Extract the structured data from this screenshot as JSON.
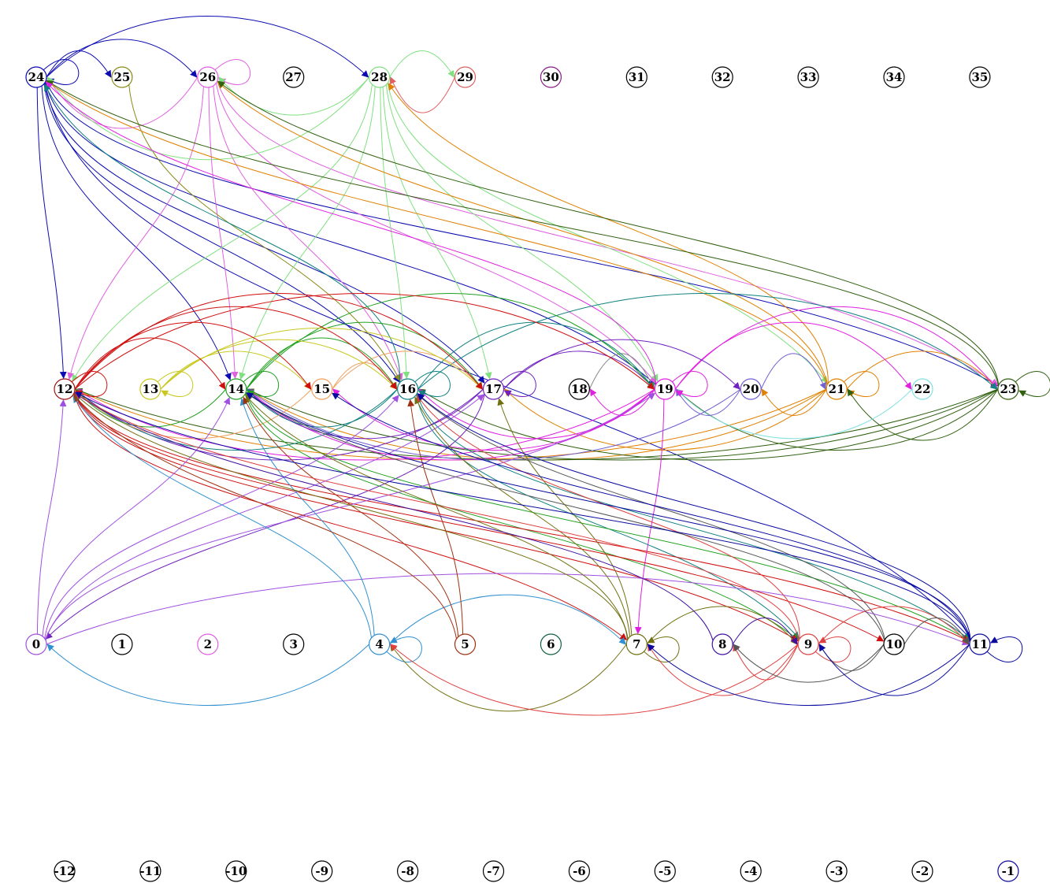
{
  "rows": [
    {
      "row": "top",
      "nodes": [
        {
          "id": "24",
          "color": "#0b0bb0"
        },
        {
          "id": "25",
          "color": "#8a8a1a"
        },
        {
          "id": "26",
          "color": "#e060e0"
        },
        {
          "id": "27",
          "color": "#000000"
        },
        {
          "id": "28",
          "color": "#80e080"
        },
        {
          "id": "29",
          "color": "#e06060"
        },
        {
          "id": "30",
          "color": "#8a1a8a"
        },
        {
          "id": "31",
          "color": "#000000"
        },
        {
          "id": "32",
          "color": "#000000"
        },
        {
          "id": "33",
          "color": "#000000"
        },
        {
          "id": "34",
          "color": "#000000"
        },
        {
          "id": "35",
          "color": "#000000"
        }
      ]
    },
    {
      "row": "middle",
      "nodes": [
        {
          "id": "12",
          "color": "#a01010"
        },
        {
          "id": "13",
          "color": "#c8c820"
        },
        {
          "id": "14",
          "color": "#20a020"
        },
        {
          "id": "15",
          "color": "#f0a060"
        },
        {
          "id": "16",
          "color": "#108080"
        },
        {
          "id": "17",
          "color": "#7020c0"
        },
        {
          "id": "18",
          "color": "#000000"
        },
        {
          "id": "19",
          "color": "#e020e0"
        },
        {
          "id": "20",
          "color": "#7060d0"
        },
        {
          "id": "21",
          "color": "#e08000"
        },
        {
          "id": "22",
          "color": "#80e0e0"
        },
        {
          "id": "23",
          "color": "#306010"
        }
      ]
    },
    {
      "row": "bottom",
      "nodes": [
        {
          "id": "0",
          "color": "#a050e0"
        },
        {
          "id": "1",
          "color": "#000000"
        },
        {
          "id": "2",
          "color": "#e060e0"
        },
        {
          "id": "3",
          "color": "#000000"
        },
        {
          "id": "4",
          "color": "#3090d0"
        },
        {
          "id": "5",
          "color": "#a03010"
        },
        {
          "id": "6",
          "color": "#106040"
        },
        {
          "id": "7",
          "color": "#707010"
        },
        {
          "id": "8",
          "color": "#4010a0"
        },
        {
          "id": "9",
          "color": "#e04040"
        },
        {
          "id": "10",
          "color": "#000000"
        },
        {
          "id": "11",
          "color": "#0a0aa0"
        }
      ]
    },
    {
      "row": "negative",
      "nodes": [
        {
          "id": "-12",
          "color": "#000000"
        },
        {
          "id": "-11",
          "color": "#000000"
        },
        {
          "id": "-10",
          "color": "#000000"
        },
        {
          "id": "-9",
          "color": "#000000"
        },
        {
          "id": "-8",
          "color": "#000000"
        },
        {
          "id": "-7",
          "color": "#000000"
        },
        {
          "id": "-6",
          "color": "#000000"
        },
        {
          "id": "-5",
          "color": "#000000"
        },
        {
          "id": "-4",
          "color": "#000000"
        },
        {
          "id": "-3",
          "color": "#000000"
        },
        {
          "id": "-2",
          "color": "#000000"
        },
        {
          "id": "-1",
          "color": "#0a0aa0"
        }
      ]
    }
  ],
  "edges": [
    {
      "from": "24",
      "to": "25",
      "color": "#0b0bb0"
    },
    {
      "from": "24",
      "to": "26",
      "color": "#0b0bb0"
    },
    {
      "from": "24",
      "to": "28",
      "color": "#0b0bb0"
    },
    {
      "from": "24",
      "to": "24",
      "color": "#0b0bb0"
    },
    {
      "from": "24",
      "to": "12",
      "color": "#0b0bb0"
    },
    {
      "from": "24",
      "to": "14",
      "color": "#0b0bb0"
    },
    {
      "from": "24",
      "to": "16",
      "color": "#0b0bb0"
    },
    {
      "from": "24",
      "to": "17",
      "color": "#0b0bb0"
    },
    {
      "from": "24",
      "to": "19",
      "color": "#0b0bb0"
    },
    {
      "from": "24",
      "to": "23",
      "color": "#0b0bb0"
    },
    {
      "from": "24",
      "to": "11",
      "color": "#0b0bb0"
    },
    {
      "from": "26",
      "to": "26",
      "color": "#e060e0"
    },
    {
      "from": "26",
      "to": "24",
      "color": "#e060e0"
    },
    {
      "from": "26",
      "to": "12",
      "color": "#e060e0"
    },
    {
      "from": "26",
      "to": "14",
      "color": "#e060e0"
    },
    {
      "from": "26",
      "to": "16",
      "color": "#e060e0"
    },
    {
      "from": "26",
      "to": "19",
      "color": "#e060e0"
    },
    {
      "from": "26",
      "to": "23",
      "color": "#e060e0"
    },
    {
      "from": "25",
      "to": "16",
      "color": "#8a8a1a"
    },
    {
      "from": "28",
      "to": "29",
      "color": "#80e080"
    },
    {
      "from": "28",
      "to": "24",
      "color": "#80e080"
    },
    {
      "from": "28",
      "to": "26",
      "color": "#80e080"
    },
    {
      "from": "28",
      "to": "12",
      "color": "#80e080"
    },
    {
      "from": "28",
      "to": "14",
      "color": "#80e080"
    },
    {
      "from": "28",
      "to": "16",
      "color": "#80e080"
    },
    {
      "from": "28",
      "to": "17",
      "color": "#80e080"
    },
    {
      "from": "28",
      "to": "19",
      "color": "#80e080"
    },
    {
      "from": "28",
      "to": "21",
      "color": "#80e080"
    },
    {
      "from": "29",
      "to": "28",
      "color": "#e06060"
    },
    {
      "from": "21",
      "to": "28",
      "color": "#e08000"
    },
    {
      "from": "21",
      "to": "24",
      "color": "#e08000"
    },
    {
      "from": "21",
      "to": "26",
      "color": "#e08000"
    },
    {
      "from": "21",
      "to": "20",
      "color": "#e08000"
    },
    {
      "from": "21",
      "to": "21",
      "color": "#e08000"
    },
    {
      "from": "21",
      "to": "23",
      "color": "#e08000"
    },
    {
      "from": "21",
      "to": "12",
      "color": "#e08000"
    },
    {
      "from": "21",
      "to": "14",
      "color": "#e08000"
    },
    {
      "from": "21",
      "to": "17",
      "color": "#e08000"
    },
    {
      "from": "23",
      "to": "23",
      "color": "#306010"
    },
    {
      "from": "23",
      "to": "21",
      "color": "#306010"
    },
    {
      "from": "23",
      "to": "19",
      "color": "#306010"
    },
    {
      "from": "23",
      "to": "24",
      "color": "#306010"
    },
    {
      "from": "23",
      "to": "26",
      "color": "#306010"
    },
    {
      "from": "23",
      "to": "12",
      "color": "#306010"
    },
    {
      "from": "23",
      "to": "14",
      "color": "#306010"
    },
    {
      "from": "23",
      "to": "16",
      "color": "#306010"
    },
    {
      "from": "22",
      "to": "19",
      "color": "#80e0e0"
    },
    {
      "from": "20",
      "to": "19",
      "color": "#7060d0"
    },
    {
      "from": "20",
      "to": "21",
      "color": "#7060d0"
    },
    {
      "from": "20",
      "to": "14",
      "color": "#7060d0"
    },
    {
      "from": "19",
      "to": "19",
      "color": "#e020e0"
    },
    {
      "from": "19",
      "to": "18",
      "color": "#e020e0"
    },
    {
      "from": "19",
      "to": "22",
      "color": "#e020e0"
    },
    {
      "from": "19",
      "to": "23",
      "color": "#e020e0"
    },
    {
      "from": "19",
      "to": "24",
      "color": "#e020e0"
    },
    {
      "from": "19",
      "to": "7",
      "color": "#e020e0"
    },
    {
      "from": "19",
      "to": "12",
      "color": "#e020e0"
    },
    {
      "from": "19",
      "to": "14",
      "color": "#e020e0"
    },
    {
      "from": "19",
      "to": "15",
      "color": "#e020e0"
    },
    {
      "from": "19",
      "to": "16",
      "color": "#e020e0"
    },
    {
      "from": "18",
      "to": "19",
      "color": "#888888"
    },
    {
      "from": "17",
      "to": "17",
      "color": "#7020c0"
    },
    {
      "from": "17",
      "to": "19",
      "color": "#7020c0"
    },
    {
      "from": "17",
      "to": "20",
      "color": "#7020c0"
    },
    {
      "from": "17",
      "to": "12",
      "color": "#7020c0"
    },
    {
      "from": "17",
      "to": "14",
      "color": "#7020c0"
    },
    {
      "from": "17",
      "to": "0",
      "color": "#7020c0"
    },
    {
      "from": "16",
      "to": "16",
      "color": "#108080"
    },
    {
      "from": "16",
      "to": "19",
      "color": "#108080"
    },
    {
      "from": "16",
      "to": "23",
      "color": "#108080"
    },
    {
      "from": "16",
      "to": "24",
      "color": "#108080"
    },
    {
      "from": "16",
      "to": "12",
      "color": "#108080"
    },
    {
      "from": "16",
      "to": "14",
      "color": "#108080"
    },
    {
      "from": "16",
      "to": "11",
      "color": "#108080"
    },
    {
      "from": "16",
      "to": "9",
      "color": "#108080"
    },
    {
      "from": "15",
      "to": "16",
      "color": "#f0a060"
    },
    {
      "from": "15",
      "to": "17",
      "color": "#f0a060"
    },
    {
      "from": "15",
      "to": "12",
      "color": "#f0a060"
    },
    {
      "from": "14",
      "to": "14",
      "color": "#20a020"
    },
    {
      "from": "14",
      "to": "16",
      "color": "#20a020"
    },
    {
      "from": "14",
      "to": "17",
      "color": "#20a020"
    },
    {
      "from": "14",
      "to": "19",
      "color": "#20a020"
    },
    {
      "from": "14",
      "to": "12",
      "color": "#20a020"
    },
    {
      "from": "14",
      "to": "9",
      "color": "#20a020"
    },
    {
      "from": "14",
      "to": "11",
      "color": "#20a020"
    },
    {
      "from": "13",
      "to": "13",
      "color": "#c8c820"
    },
    {
      "from": "13",
      "to": "16",
      "color": "#c8c820"
    },
    {
      "from": "13",
      "to": "17",
      "color": "#c8c820"
    },
    {
      "from": "13",
      "to": "15",
      "color": "#c8c820"
    },
    {
      "from": "12",
      "to": "12",
      "color": "#d01010"
    },
    {
      "from": "12",
      "to": "14",
      "color": "#d01010"
    },
    {
      "from": "12",
      "to": "15",
      "color": "#d01010"
    },
    {
      "from": "12",
      "to": "16",
      "color": "#d01010"
    },
    {
      "from": "12",
      "to": "17",
      "color": "#d01010"
    },
    {
      "from": "12",
      "to": "19",
      "color": "#d01010"
    },
    {
      "from": "12",
      "to": "7",
      "color": "#d01010"
    },
    {
      "from": "12",
      "to": "9",
      "color": "#d01010"
    },
    {
      "from": "12",
      "to": "10",
      "color": "#d01010"
    },
    {
      "from": "12",
      "to": "11",
      "color": "#d01010"
    },
    {
      "from": "0",
      "to": "12",
      "color": "#a050e0"
    },
    {
      "from": "0",
      "to": "14",
      "color": "#a050e0"
    },
    {
      "from": "0",
      "to": "16",
      "color": "#a050e0"
    },
    {
      "from": "0",
      "to": "17",
      "color": "#a050e0"
    },
    {
      "from": "0",
      "to": "19",
      "color": "#a050e0"
    },
    {
      "from": "0",
      "to": "11",
      "color": "#a050e0"
    },
    {
      "from": "4",
      "to": "0",
      "color": "#3090d0"
    },
    {
      "from": "4",
      "to": "4",
      "color": "#3090d0"
    },
    {
      "from": "4",
      "to": "7",
      "color": "#3090d0"
    },
    {
      "from": "4",
      "to": "12",
      "color": "#3090d0"
    },
    {
      "from": "4",
      "to": "14",
      "color": "#3090d0"
    },
    {
      "from": "5",
      "to": "12",
      "color": "#a03010"
    },
    {
      "from": "5",
      "to": "14",
      "color": "#a03010"
    },
    {
      "from": "5",
      "to": "16",
      "color": "#a03010"
    },
    {
      "from": "7",
      "to": "7",
      "color": "#707010"
    },
    {
      "from": "7",
      "to": "4",
      "color": "#707010"
    },
    {
      "from": "7",
      "to": "9",
      "color": "#707010"
    },
    {
      "from": "7",
      "to": "12",
      "color": "#707010"
    },
    {
      "from": "7",
      "to": "14",
      "color": "#707010"
    },
    {
      "from": "7",
      "to": "16",
      "color": "#707010"
    },
    {
      "from": "7",
      "to": "17",
      "color": "#707010"
    },
    {
      "from": "8",
      "to": "9",
      "color": "#4010a0"
    },
    {
      "from": "8",
      "to": "12",
      "color": "#4010a0"
    },
    {
      "from": "9",
      "to": "9",
      "color": "#e04040"
    },
    {
      "from": "9",
      "to": "4",
      "color": "#e04040"
    },
    {
      "from": "9",
      "to": "7",
      "color": "#e04040"
    },
    {
      "from": "9",
      "to": "8",
      "color": "#e04040"
    },
    {
      "from": "9",
      "to": "11",
      "color": "#e04040"
    },
    {
      "from": "9",
      "to": "12",
      "color": "#e04040"
    },
    {
      "from": "9",
      "to": "16",
      "color": "#e04040"
    },
    {
      "from": "10",
      "to": "9",
      "color": "#555555"
    },
    {
      "from": "10",
      "to": "8",
      "color": "#555555"
    },
    {
      "from": "10",
      "to": "11",
      "color": "#555555"
    },
    {
      "from": "10",
      "to": "14",
      "color": "#555555"
    },
    {
      "from": "10",
      "to": "16",
      "color": "#555555"
    },
    {
      "from": "11",
      "to": "11",
      "color": "#0a0aa0"
    },
    {
      "from": "11",
      "to": "7",
      "color": "#0a0aa0"
    },
    {
      "from": "11",
      "to": "9",
      "color": "#0a0aa0"
    },
    {
      "from": "11",
      "to": "12",
      "color": "#0a0aa0"
    },
    {
      "from": "11",
      "to": "14",
      "color": "#0a0aa0"
    },
    {
      "from": "11",
      "to": "15",
      "color": "#0a0aa0"
    },
    {
      "from": "11",
      "to": "16",
      "color": "#0a0aa0"
    }
  ]
}
